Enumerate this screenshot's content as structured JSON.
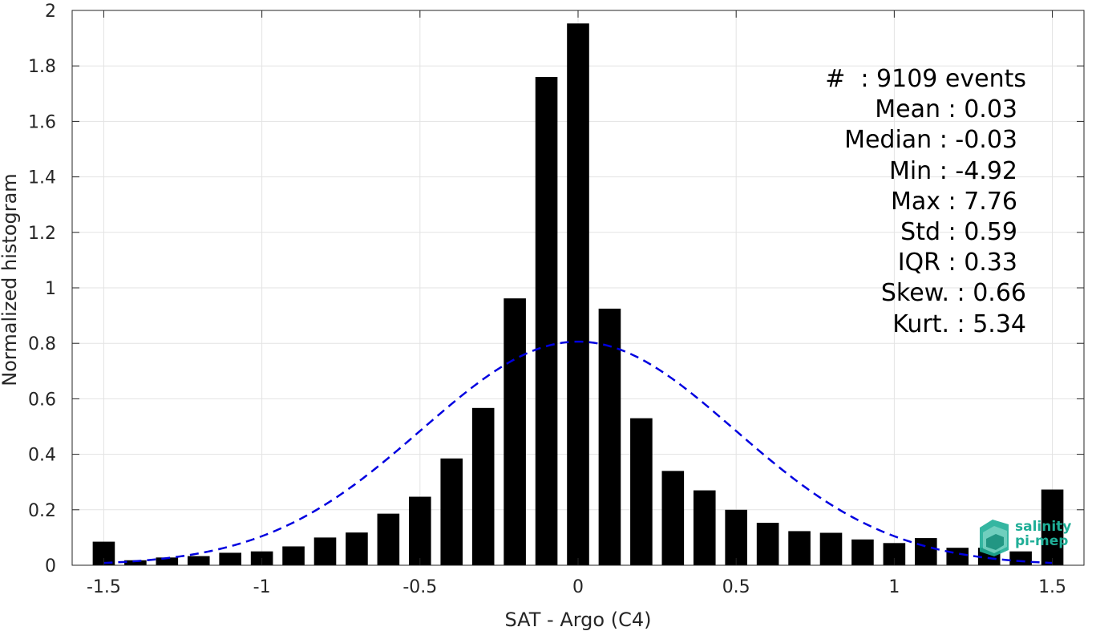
{
  "chart_data": {
    "type": "bar",
    "xlabel": "SAT - Argo (C4)",
    "ylabel": "Normalized histogram",
    "xlim": [
      -1.6,
      1.6
    ],
    "ylim": [
      0,
      2
    ],
    "xticks": [
      "-1.5",
      "-1",
      "-0.5",
      "0",
      "0.5",
      "1",
      "1.5"
    ],
    "xtick_values": [
      -1.5,
      -1,
      -0.5,
      0,
      0.5,
      1,
      1.5
    ],
    "yticks": [
      "0",
      "0.2",
      "0.4",
      "0.6",
      "0.8",
      "1",
      "1.2",
      "1.4",
      "1.6",
      "1.8",
      "2"
    ],
    "ytick_values": [
      0,
      0.2,
      0.4,
      0.6,
      0.8,
      1,
      1.2,
      1.4,
      1.6,
      1.8,
      2
    ],
    "grid": true,
    "bar_width": 0.07,
    "bars": {
      "x": [
        -1.5,
        -1.4,
        -1.3,
        -1.2,
        -1.1,
        -1.0,
        -0.9,
        -0.8,
        -0.7,
        -0.6,
        -0.5,
        -0.4,
        -0.3,
        -0.2,
        -0.1,
        0.0,
        0.1,
        0.2,
        0.3,
        0.4,
        0.5,
        0.6,
        0.7,
        0.8,
        0.9,
        1.0,
        1.1,
        1.2,
        1.3,
        1.4,
        1.5
      ],
      "values": [
        0.085,
        0.018,
        0.028,
        0.033,
        0.045,
        0.05,
        0.068,
        0.1,
        0.118,
        0.186,
        0.247,
        0.385,
        0.567,
        0.962,
        1.76,
        1.953,
        0.925,
        0.53,
        0.34,
        0.27,
        0.2,
        0.153,
        0.123,
        0.117,
        0.093,
        0.08,
        0.098,
        0.063,
        0.063,
        0.05,
        0.273
      ],
      "color": "#000000"
    },
    "fit": {
      "type": "gaussian",
      "mean": 0.0,
      "std": 0.495,
      "peak": 0.806,
      "color": "#0000e0",
      "style": "dashed"
    }
  },
  "stats": [
    {
      "text": "#  : 9109 events",
      "align": "r1"
    },
    {
      "text": "Mean : 0.03",
      "align": "r2"
    },
    {
      "text": "Median : -0.03",
      "align": "r2"
    },
    {
      "text": "Min : -4.92",
      "align": "r2"
    },
    {
      "text": "Max : 7.76",
      "align": "r2"
    },
    {
      "text": "Std : 0.59",
      "align": "r2"
    },
    {
      "text": "IQR : 0.33",
      "align": "r2"
    },
    {
      "text": "Skew. : 0.66",
      "align": "r1"
    },
    {
      "text": "Kurt. : 5.34",
      "align": "r1"
    }
  ],
  "logo": {
    "line1": "salinity",
    "line2": "pi-mep",
    "color": "#1fae97"
  }
}
